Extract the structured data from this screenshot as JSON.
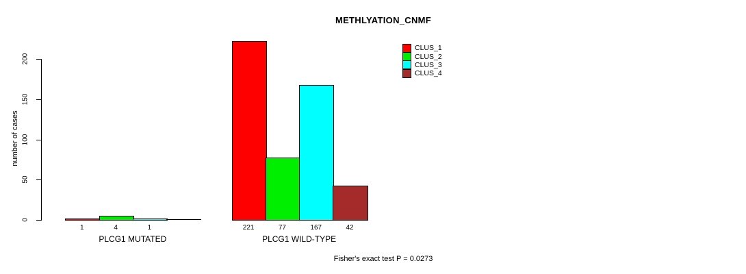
{
  "page": {
    "background": "#FFFFFF"
  },
  "chart_data": {
    "type": "bar",
    "title": "METHLYATION_CNMF",
    "ylabel": "number of cases",
    "xlabel": "",
    "ylim": [
      0,
      220
    ],
    "yticks": [
      0,
      50,
      100,
      150,
      200
    ],
    "grid": false,
    "legend_position": "top-right-of-plot",
    "clusters": [
      {
        "name": "CLUS_1",
        "color": "#FF0000"
      },
      {
        "name": "CLUS_2",
        "color": "#00EE00"
      },
      {
        "name": "CLUS_3",
        "color": "#00FFFF"
      },
      {
        "name": "CLUS_4",
        "color": "#A52A2A"
      }
    ],
    "groups": [
      {
        "label": "PLCG1 MUTATED",
        "values": [
          1,
          4,
          1,
          0
        ],
        "bar_labels": [
          "1",
          "4",
          "1",
          ""
        ]
      },
      {
        "label": "PLCG1 WILD-TYPE",
        "values": [
          221,
          77,
          167,
          42
        ],
        "bar_labels": [
          "221",
          "77",
          "167",
          "42"
        ]
      }
    ],
    "footnote": "Fisher's exact test P = 0.0273"
  }
}
